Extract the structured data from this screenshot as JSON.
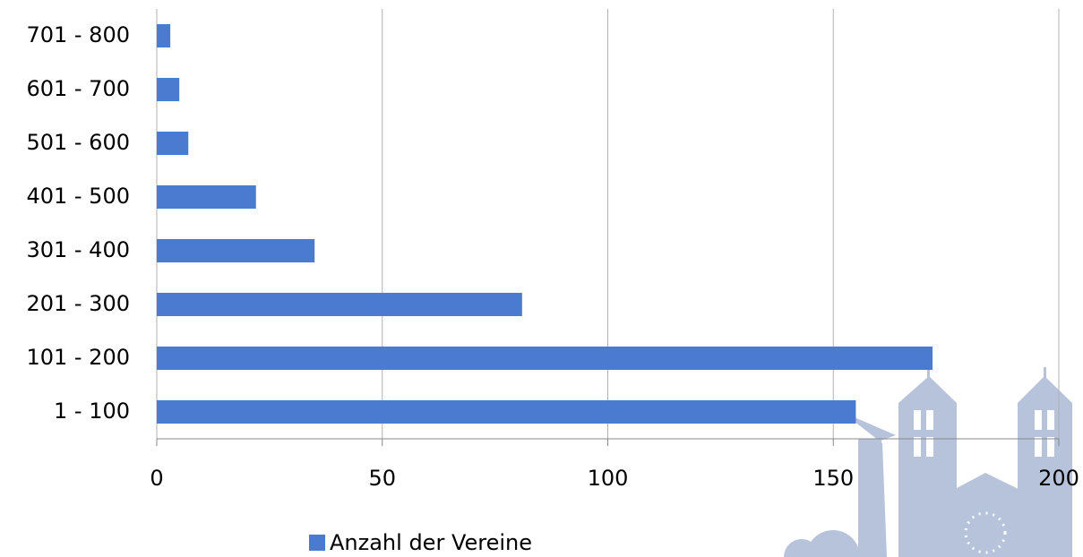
{
  "chart_data": {
    "type": "bar",
    "orientation": "horizontal",
    "categories": [
      "1 - 100",
      "101 - 200",
      "201 - 300",
      "301 - 400",
      "401 - 500",
      "501 - 600",
      "601 - 700",
      "701 - 800"
    ],
    "series": [
      {
        "name": "Anzahl der Vereine",
        "color": "#4a7bd0",
        "values": [
          155,
          172,
          81,
          35,
          22,
          7,
          5,
          3
        ]
      }
    ],
    "xlim": [
      0,
      200
    ],
    "xticks": [
      0,
      50,
      100,
      150,
      200
    ],
    "grid": true,
    "legend": "bottom"
  }
}
